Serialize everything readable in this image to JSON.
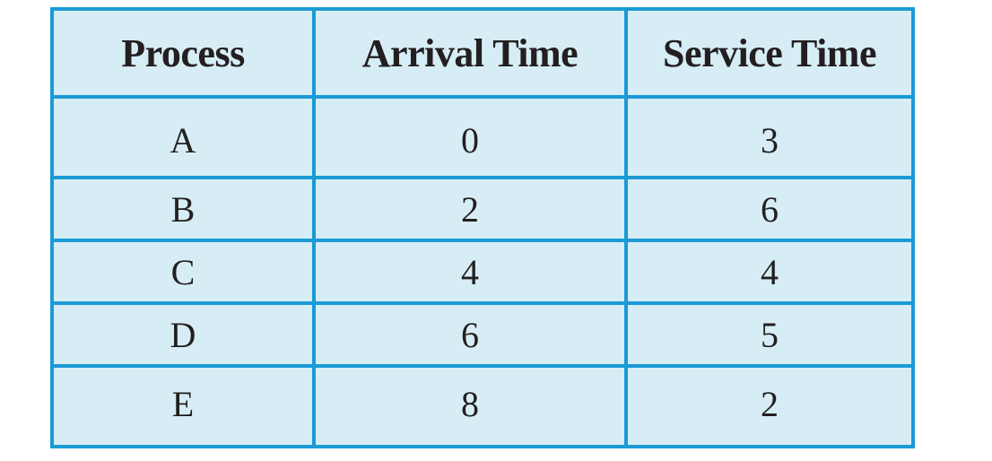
{
  "table": {
    "headers": [
      "Process",
      "Arrival Time",
      "Service Time"
    ],
    "rows": [
      [
        "A",
        "0",
        "3"
      ],
      [
        "B",
        "2",
        "6"
      ],
      [
        "C",
        "4",
        "4"
      ],
      [
        "D",
        "6",
        "5"
      ],
      [
        "E",
        "8",
        "2"
      ]
    ]
  },
  "colors": {
    "border": "#1a9ad6",
    "cell_background": "#d7edf5",
    "text": "#231f20"
  }
}
